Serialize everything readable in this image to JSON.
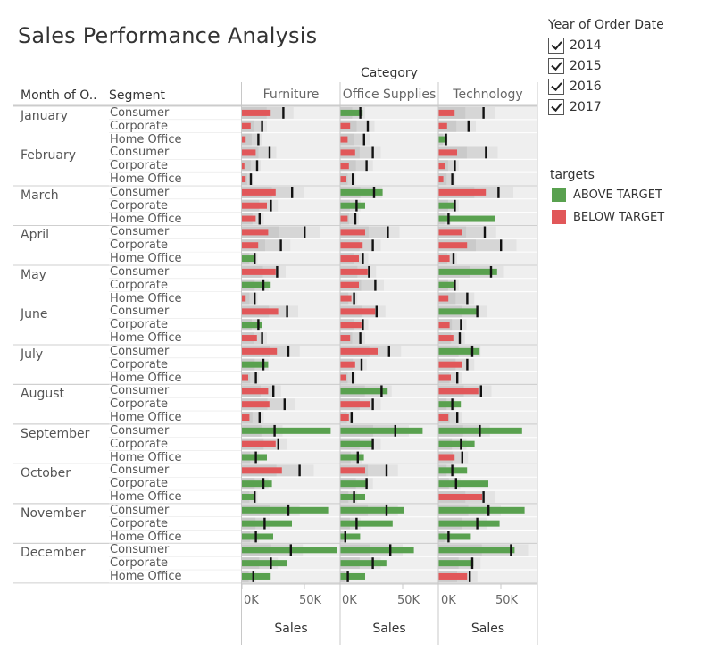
{
  "title": "Sales Performance Analysis",
  "headers": {
    "category": "Category",
    "month": "Month of O..",
    "segment": "Segment"
  },
  "legend": {
    "year_title": "Year of Order Date",
    "years": [
      "2014",
      "2015",
      "2016",
      "2017"
    ],
    "targets_title": "targets",
    "targets": [
      {
        "label": "ABOVE TARGET",
        "color": "#59a14f"
      },
      {
        "label": "BELOW TARGET",
        "color": "#e15759"
      }
    ]
  },
  "chart_data": {
    "type": "bar",
    "subtype": "bullet",
    "categories": [
      "Furniture",
      "Office Supplies",
      "Technology"
    ],
    "segments": [
      "Consumer",
      "Corporate",
      "Home Office"
    ],
    "months": [
      "January",
      "February",
      "March",
      "April",
      "May",
      "June",
      "July",
      "August",
      "September",
      "October",
      "November",
      "December"
    ],
    "xlabel": "Sales",
    "xlim": [
      0,
      70000
    ],
    "ticks": [
      {
        "value": 0,
        "label": "0K"
      },
      {
        "value": 50000,
        "label": "50K"
      }
    ],
    "colors": {
      "above": "#59a14f",
      "below": "#e15759"
    },
    "values": {
      "January": {
        "Consumer": [
          [
            23000,
            33000
          ],
          [
            18000,
            16000
          ],
          [
            13000,
            36000
          ]
        ],
        "Corporate": [
          [
            7000,
            16000
          ],
          [
            8000,
            22000
          ],
          [
            7000,
            24000
          ]
        ],
        "Home Office": [
          [
            3000,
            13000
          ],
          [
            6000,
            19000
          ],
          [
            7000,
            6000
          ]
        ]
      },
      "February": {
        "Consumer": [
          [
            11000,
            22000
          ],
          [
            12000,
            26000
          ],
          [
            15000,
            38000
          ]
        ],
        "Corporate": [
          [
            2000,
            12000
          ],
          [
            7000,
            21000
          ],
          [
            5000,
            13000
          ]
        ],
        "Home Office": [
          [
            3000,
            7000
          ],
          [
            5000,
            10000
          ],
          [
            4000,
            11000
          ]
        ]
      },
      "March": {
        "Consumer": [
          [
            27000,
            40000
          ],
          [
            34000,
            27000
          ],
          [
            38000,
            48000
          ]
        ],
        "Corporate": [
          [
            20000,
            23000
          ],
          [
            20000,
            13000
          ],
          [
            14000,
            13000
          ]
        ],
        "Home Office": [
          [
            11000,
            14000
          ],
          [
            6000,
            12000
          ],
          [
            45000,
            8000
          ]
        ]
      },
      "April": {
        "Consumer": [
          [
            21000,
            50000
          ],
          [
            20000,
            38000
          ],
          [
            19000,
            37000
          ]
        ],
        "Corporate": [
          [
            13000,
            31000
          ],
          [
            18000,
            26000
          ],
          [
            23000,
            50000
          ]
        ],
        "Home Office": [
          [
            11000,
            10000
          ],
          [
            15000,
            18000
          ],
          [
            9000,
            12000
          ]
        ]
      },
      "May": {
        "Consumer": [
          [
            27000,
            28000
          ],
          [
            22000,
            23000
          ],
          [
            47000,
            42000
          ]
        ],
        "Corporate": [
          [
            23000,
            17000
          ],
          [
            15000,
            28000
          ],
          [
            13000,
            13000
          ]
        ],
        "Home Office": [
          [
            3000,
            10000
          ],
          [
            9000,
            11000
          ],
          [
            8000,
            23000
          ]
        ]
      },
      "June": {
        "Consumer": [
          [
            29000,
            36000
          ],
          [
            28000,
            29000
          ],
          [
            31000,
            31000
          ]
        ],
        "Corporate": [
          [
            16000,
            13000
          ],
          [
            17000,
            18000
          ],
          [
            9000,
            18000
          ]
        ],
        "Home Office": [
          [
            12000,
            16000
          ],
          [
            8000,
            16000
          ],
          [
            12000,
            17000
          ]
        ]
      },
      "July": {
        "Consumer": [
          [
            28000,
            37000
          ],
          [
            30000,
            39000
          ],
          [
            33000,
            27000
          ]
        ],
        "Corporate": [
          [
            21000,
            17000
          ],
          [
            12000,
            17000
          ],
          [
            19000,
            23000
          ]
        ],
        "Home Office": [
          [
            5000,
            11000
          ],
          [
            5000,
            10000
          ],
          [
            10000,
            15000
          ]
        ]
      },
      "August": {
        "Consumer": [
          [
            21000,
            25000
          ],
          [
            38000,
            33000
          ],
          [
            32000,
            34000
          ]
        ],
        "Corporate": [
          [
            22000,
            34000
          ],
          [
            24000,
            26000
          ],
          [
            18000,
            11000
          ]
        ],
        "Home Office": [
          [
            6000,
            14000
          ],
          [
            7000,
            9000
          ],
          [
            8000,
            15000
          ]
        ]
      },
      "September": {
        "Consumer": [
          [
            71000,
            26000
          ],
          [
            66000,
            44000
          ],
          [
            67000,
            33000
          ]
        ],
        "Corporate": [
          [
            27000,
            29000
          ],
          [
            26000,
            26000
          ],
          [
            29000,
            18000
          ]
        ],
        "Home Office": [
          [
            20000,
            11000
          ],
          [
            19000,
            14000
          ],
          [
            13000,
            19000
          ]
        ]
      },
      "October": {
        "Consumer": [
          [
            32000,
            46000
          ],
          [
            20000,
            37000
          ],
          [
            23000,
            11000
          ]
        ],
        "Corporate": [
          [
            24000,
            17000
          ],
          [
            22000,
            21000
          ],
          [
            40000,
            14000
          ]
        ],
        "Home Office": [
          [
            10000,
            10000
          ],
          [
            20000,
            11000
          ],
          [
            35000,
            36000
          ]
        ]
      },
      "November": {
        "Consumer": [
          [
            69000,
            37000
          ],
          [
            51000,
            37000
          ],
          [
            69000,
            40000
          ]
        ],
        "Corporate": [
          [
            40000,
            18000
          ],
          [
            42000,
            13000
          ],
          [
            49000,
            31000
          ]
        ],
        "Home Office": [
          [
            25000,
            11000
          ],
          [
            16000,
            4000
          ],
          [
            26000,
            8000
          ]
        ]
      },
      "December": {
        "Consumer": [
          [
            76000,
            39000
          ],
          [
            59000,
            40000
          ],
          [
            61000,
            58000
          ]
        ],
        "Corporate": [
          [
            36000,
            23000
          ],
          [
            37000,
            26000
          ],
          [
            28000,
            27000
          ]
        ],
        "Home Office": [
          [
            23000,
            9000
          ],
          [
            20000,
            6000
          ],
          [
            23000,
            25000
          ]
        ]
      }
    }
  }
}
